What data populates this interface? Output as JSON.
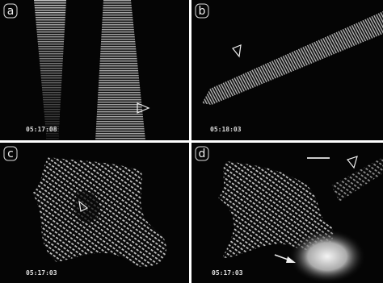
{
  "panels": [
    {
      "label": "a",
      "timestamp": "05:17:08"
    },
    {
      "label": "b",
      "timestamp": "05:18:03"
    },
    {
      "label": "c",
      "timestamp": "05:17:03"
    },
    {
      "label": "d",
      "timestamp": "05:17:03"
    }
  ]
}
